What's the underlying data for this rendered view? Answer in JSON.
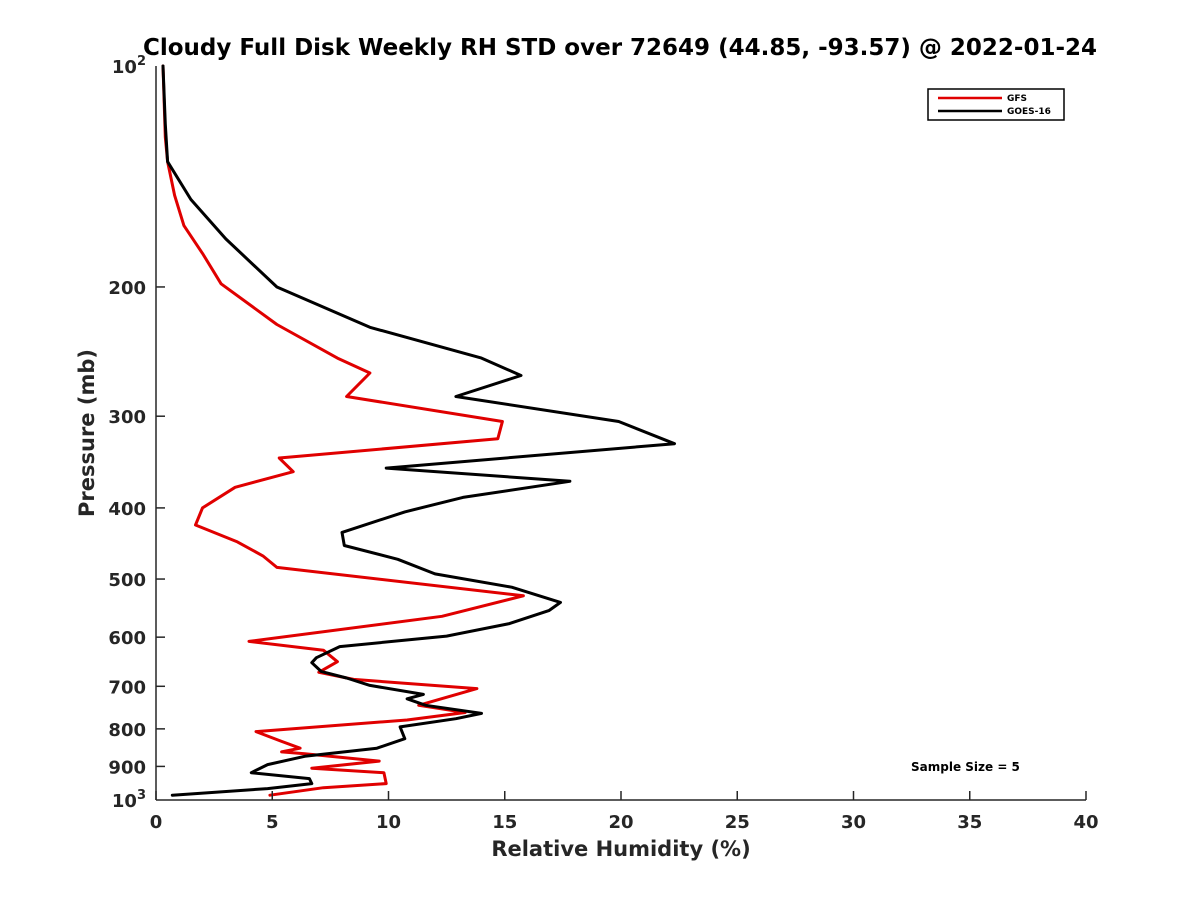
{
  "chart_data": {
    "type": "line",
    "title": "Cloudy Full Disk Weekly RH STD over 72649 (44.85, -93.57) @ 2022-01-24",
    "xlabel": "Relative Humidity (%)",
    "ylabel": "Pressure (mb)",
    "xlim": [
      0,
      40
    ],
    "ylim": [
      100,
      1000
    ],
    "y_scale": "log",
    "y_reversed": true,
    "grid": false,
    "legend_position": "top-right",
    "x_ticks": [
      0,
      5,
      10,
      15,
      20,
      25,
      30,
      35,
      40
    ],
    "x_tick_labels": [
      "0",
      "5",
      "10",
      "15",
      "20",
      "25",
      "30",
      "35",
      "40"
    ],
    "y_ticks": [
      200,
      300,
      400,
      500,
      600,
      700,
      800,
      900
    ],
    "y_tick_labels": [
      "200",
      "300",
      "400",
      "500",
      "600",
      "700",
      "800",
      "900"
    ],
    "y_end_ticks": [
      {
        "value": 100,
        "base": "10",
        "exp": "2"
      },
      {
        "value": 1000,
        "base": "10",
        "exp": "3"
      }
    ],
    "annotation": "Sample Size = 5",
    "series": [
      {
        "name": "GFS",
        "color": "#e00000",
        "points": [
          [
            0.3,
            100
          ],
          [
            0.4,
            125
          ],
          [
            0.5,
            135
          ],
          [
            0.8,
            150
          ],
          [
            1.2,
            165
          ],
          [
            2.0,
            180
          ],
          [
            2.8,
            198
          ],
          [
            5.2,
            225
          ],
          [
            7.8,
            250
          ],
          [
            9.2,
            262
          ],
          [
            8.2,
            282
          ],
          [
            14.9,
            305
          ],
          [
            14.7,
            322
          ],
          [
            5.3,
            342
          ],
          [
            5.9,
            357
          ],
          [
            3.4,
            375
          ],
          [
            2.0,
            400
          ],
          [
            1.7,
            422
          ],
          [
            3.5,
            445
          ],
          [
            4.6,
            465
          ],
          [
            5.2,
            482
          ],
          [
            15.8,
            527
          ],
          [
            12.3,
            562
          ],
          [
            4.0,
            608
          ],
          [
            7.2,
            625
          ],
          [
            7.8,
            648
          ],
          [
            7.0,
            670
          ],
          [
            8.5,
            685
          ],
          [
            13.8,
            705
          ],
          [
            11.8,
            735
          ],
          [
            11.3,
            743
          ],
          [
            13.3,
            760
          ],
          [
            10.8,
            778
          ],
          [
            4.3,
            807
          ],
          [
            5.4,
            832
          ],
          [
            6.2,
            850
          ],
          [
            5.4,
            860
          ],
          [
            6.4,
            865
          ],
          [
            9.6,
            885
          ],
          [
            6.7,
            905
          ],
          [
            9.8,
            918
          ],
          [
            9.9,
            950
          ],
          [
            7.2,
            962
          ],
          [
            4.9,
            985
          ]
        ]
      },
      {
        "name": "GOES-16",
        "color": "#000000",
        "points": [
          [
            0.3,
            100
          ],
          [
            0.4,
            120
          ],
          [
            0.5,
            135
          ],
          [
            1.5,
            152
          ],
          [
            3.0,
            172
          ],
          [
            5.2,
            200
          ],
          [
            9.2,
            227
          ],
          [
            14.0,
            250
          ],
          [
            15.7,
            264
          ],
          [
            12.9,
            282
          ],
          [
            19.9,
            305
          ],
          [
            22.3,
            327
          ],
          [
            9.9,
            353
          ],
          [
            17.8,
            368
          ],
          [
            13.2,
            387
          ],
          [
            10.7,
            405
          ],
          [
            8.0,
            432
          ],
          [
            8.1,
            450
          ],
          [
            10.4,
            470
          ],
          [
            12.0,
            492
          ],
          [
            15.3,
            513
          ],
          [
            17.4,
            538
          ],
          [
            16.9,
            552
          ],
          [
            15.2,
            575
          ],
          [
            12.5,
            598
          ],
          [
            7.9,
            618
          ],
          [
            6.9,
            640
          ],
          [
            6.7,
            650
          ],
          [
            7.1,
            668
          ],
          [
            8.2,
            682
          ],
          [
            9.2,
            698
          ],
          [
            11.5,
            718
          ],
          [
            10.8,
            728
          ],
          [
            11.6,
            743
          ],
          [
            14.0,
            762
          ],
          [
            12.9,
            775
          ],
          [
            10.5,
            795
          ],
          [
            10.7,
            825
          ],
          [
            9.5,
            850
          ],
          [
            6.4,
            872
          ],
          [
            4.8,
            895
          ],
          [
            4.1,
            918
          ],
          [
            6.6,
            935
          ],
          [
            6.7,
            950
          ],
          [
            4.8,
            965
          ],
          [
            0.7,
            985
          ]
        ]
      }
    ]
  }
}
